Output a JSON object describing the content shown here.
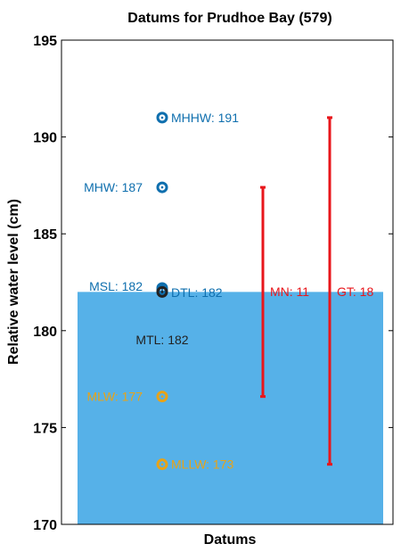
{
  "chart_data": {
    "type": "bar",
    "title": "Datums for Prudhoe Bay (579)",
    "xlabel": "Datums",
    "ylabel": "Relative water level (cm)",
    "ylim": [
      170,
      195
    ],
    "yticks": [
      170,
      175,
      180,
      185,
      190,
      195
    ],
    "grid": false,
    "fill": {
      "level": 182,
      "color": "#56b1e8"
    },
    "datums": [
      {
        "name": "MHHW",
        "value": 191.0,
        "label": "MHHW: 191",
        "color": "#0f6fae",
        "label_side": "right"
      },
      {
        "name": "MHW",
        "value": 187.4,
        "label": "MHW: 187",
        "color": "#0f6fae",
        "label_side": "left"
      },
      {
        "name": "MSL",
        "value": 182.2,
        "label": "MSL: 182",
        "color": "#0f6fae",
        "label_side": "left"
      },
      {
        "name": "DTL",
        "value": 182.1,
        "label": "DTL: 182",
        "color": "#0f6fae",
        "label_side": "right"
      },
      {
        "name": "MTL",
        "value": 182.0,
        "label": "MTL: 182",
        "color": "#222222",
        "label_side": "below"
      },
      {
        "name": "MLW",
        "value": 176.6,
        "label": "MLW: 177",
        "color": "#e8a317",
        "label_side": "left"
      },
      {
        "name": "MLLW",
        "value": 173.1,
        "label": "MLLW: 173",
        "color": "#e8a317",
        "label_side": "right"
      }
    ],
    "ranges": [
      {
        "name": "MN",
        "label": "MN: 11",
        "low": 176.6,
        "high": 187.4,
        "color": "#e8161b"
      },
      {
        "name": "GT",
        "label": "GT: 18",
        "low": 173.1,
        "high": 191.0,
        "color": "#e8161b"
      }
    ]
  }
}
